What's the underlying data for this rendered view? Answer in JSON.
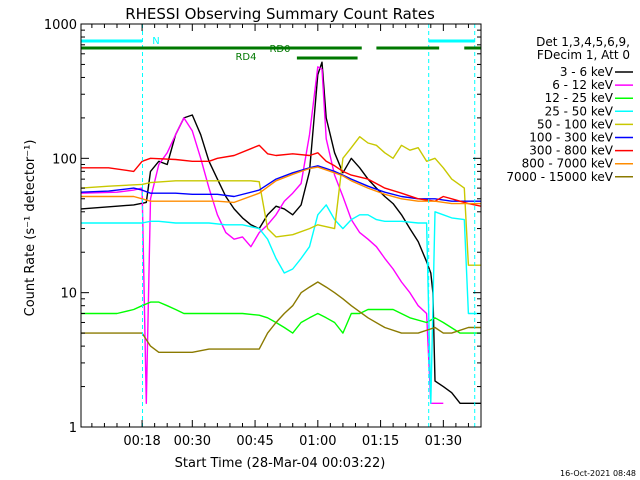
{
  "chart_data": {
    "type": "line",
    "title": "RHESSI Observing Summary Count Rates",
    "xlabel": "Start Time (28-Mar-04 00:03:22)",
    "ylabel": "Count Rate (s⁻¹ detector⁻¹)",
    "yscale": "log",
    "xlim": [
      3.4,
      99.0
    ],
    "ylim": [
      1,
      1000
    ],
    "x_ticks": [
      {
        "value": 18,
        "label": "00:18"
      },
      {
        "value": 30,
        "label": "00:30"
      },
      {
        "value": 45,
        "label": "00:45"
      },
      {
        "value": 60,
        "label": "01:00"
      },
      {
        "value": 75,
        "label": "01:15"
      },
      {
        "value": 90,
        "label": "01:30"
      }
    ],
    "y_ticks": [
      {
        "value": 1,
        "label": "1"
      },
      {
        "value": 10,
        "label": "10"
      },
      {
        "value": 100,
        "label": "100"
      },
      {
        "value": 1000,
        "label": "1000"
      }
    ],
    "legend_header": [
      "Det 1,3,4,5,6,9,",
      "FDecim 1, Att 0"
    ],
    "legend_position": "right",
    "series": [
      {
        "name": "3 - 6 keV",
        "color": "#000000",
        "x": [
          3.4,
          12,
          16,
          19,
          20,
          22,
          24,
          26,
          28,
          30,
          32,
          34,
          36,
          38,
          40,
          42,
          44,
          46,
          48,
          50,
          52,
          54,
          56,
          58,
          59,
          60,
          61,
          62,
          64,
          66,
          68,
          70,
          72,
          74,
          76,
          78,
          80,
          82,
          84,
          86,
          87,
          87.5,
          88,
          90,
          92,
          94,
          96,
          99
        ],
        "y": [
          42,
          44,
          45,
          47,
          80,
          95,
          90,
          150,
          200,
          210,
          150,
          95,
          70,
          52,
          42,
          36,
          32,
          30,
          38,
          44,
          42,
          38,
          45,
          80,
          180,
          420,
          520,
          200,
          110,
          78,
          100,
          85,
          70,
          60,
          52,
          46,
          38,
          30,
          24,
          17,
          14,
          10,
          2.2,
          2,
          1.8,
          1.5,
          1.5,
          1.5
        ]
      },
      {
        "name": "6 - 12 keV",
        "color": "#ff00ff",
        "x": [
          3.4,
          12,
          16,
          18,
          19,
          20,
          22,
          24,
          26,
          28,
          30,
          32,
          34,
          36,
          38,
          40,
          42,
          44,
          46,
          48,
          50,
          52,
          54,
          56,
          58,
          60,
          61,
          62,
          64,
          66,
          68,
          70,
          72,
          74,
          76,
          78,
          80,
          82,
          84,
          86,
          87,
          88,
          90
        ],
        "y": [
          55,
          56,
          58,
          60,
          1.5,
          50,
          90,
          110,
          150,
          200,
          160,
          100,
          60,
          38,
          28,
          25,
          26,
          22,
          28,
          32,
          38,
          48,
          55,
          65,
          150,
          480,
          460,
          140,
          75,
          52,
          35,
          28,
          25,
          22,
          18,
          15,
          12,
          10,
          8,
          7,
          1.5,
          1.5,
          1.5
        ]
      },
      {
        "name": "12 - 25 keV",
        "color": "#00ff00",
        "x": [
          3.4,
          12,
          16,
          18,
          20,
          22,
          24,
          26,
          28,
          30,
          34,
          38,
          42,
          46,
          48,
          50,
          52,
          54,
          56,
          58,
          60,
          62,
          64,
          66,
          68,
          70,
          72,
          74,
          78,
          82,
          86,
          88,
          90,
          94,
          99
        ],
        "y": [
          7,
          7,
          7.5,
          8,
          8.5,
          8.5,
          8,
          7.5,
          7,
          7,
          7,
          7,
          7,
          6.8,
          6.5,
          6,
          5.5,
          5,
          6,
          6.5,
          7,
          6.5,
          6,
          5,
          7,
          7,
          7.5,
          7.5,
          7.5,
          6.5,
          6,
          6.5,
          6,
          5,
          5
        ]
      },
      {
        "name": "25 - 50 keV",
        "color": "#00ffff",
        "x": [
          3.4,
          10,
          18,
          20,
          22,
          26,
          30,
          34,
          38,
          42,
          46,
          48,
          50,
          52,
          54,
          56,
          58,
          60,
          62,
          64,
          66,
          68,
          70,
          72,
          74,
          76,
          80,
          84,
          86,
          87,
          88,
          90,
          92,
          95,
          96,
          99
        ],
        "y": [
          33,
          33,
          33,
          34,
          34,
          33,
          33,
          33,
          32,
          32,
          30,
          25,
          18,
          14,
          15,
          18,
          22,
          38,
          45,
          35,
          30,
          35,
          38,
          38,
          35,
          34,
          34,
          33,
          33,
          1.5,
          40,
          38,
          36,
          35,
          7,
          7
        ]
      },
      {
        "name": "50 - 100 keV",
        "color": "#c8c800",
        "x": [
          3.4,
          10,
          18,
          20,
          26,
          30,
          36,
          40,
          44,
          46,
          48,
          50,
          54,
          58,
          60,
          62,
          64,
          66,
          68,
          70,
          72,
          74,
          76,
          78,
          80,
          82,
          84,
          86,
          88,
          90,
          92,
          95,
          96,
          99
        ],
        "y": [
          60,
          62,
          64,
          66,
          68,
          68,
          68,
          68,
          68,
          67,
          30,
          26,
          27,
          30,
          32,
          31,
          30,
          100,
          120,
          145,
          130,
          125,
          110,
          100,
          125,
          115,
          120,
          95,
          100,
          85,
          70,
          60,
          16,
          16
        ]
      },
      {
        "name": "100 - 300 keV",
        "color": "#0000ff",
        "x": [
          3.4,
          10,
          16,
          18,
          20,
          26,
          30,
          36,
          40,
          46,
          50,
          54,
          58,
          60,
          62,
          64,
          66,
          68,
          72,
          76,
          80,
          84,
          88,
          92,
          96,
          99
        ],
        "y": [
          56,
          57,
          60,
          58,
          55,
          55,
          54,
          54,
          52,
          58,
          70,
          78,
          85,
          88,
          84,
          80,
          75,
          70,
          62,
          56,
          52,
          50,
          50,
          48,
          48,
          48
        ]
      },
      {
        "name": "300 - 800 keV",
        "color": "#ff0000",
        "x": [
          3.4,
          10,
          16,
          18,
          20,
          26,
          30,
          34,
          36,
          40,
          44,
          46,
          48,
          50,
          54,
          58,
          60,
          62,
          64,
          66,
          68,
          72,
          76,
          80,
          84,
          88,
          90,
          92,
          96,
          99
        ],
        "y": [
          85,
          85,
          80,
          95,
          100,
          98,
          95,
          95,
          100,
          105,
          118,
          125,
          108,
          105,
          108,
          105,
          110,
          95,
          88,
          80,
          75,
          70,
          60,
          55,
          50,
          48,
          52,
          50,
          46,
          44
        ]
      },
      {
        "name": "800 - 7000 keV",
        "color": "#ff8c00",
        "x": [
          3.4,
          10,
          16,
          18,
          20,
          26,
          30,
          36,
          40,
          46,
          50,
          54,
          58,
          60,
          62,
          64,
          66,
          68,
          72,
          76,
          80,
          84,
          88,
          92,
          96,
          99
        ],
        "y": [
          52,
          52,
          52,
          50,
          48,
          48,
          48,
          48,
          47,
          55,
          68,
          76,
          84,
          86,
          82,
          78,
          74,
          68,
          60,
          54,
          50,
          48,
          48,
          46,
          46,
          46
        ]
      },
      {
        "name": "7000 - 15000 keV",
        "color": "#8b7a00",
        "x": [
          3.4,
          10,
          16,
          18,
          20,
          22,
          26,
          30,
          34,
          38,
          42,
          46,
          48,
          50,
          52,
          54,
          56,
          58,
          60,
          62,
          64,
          66,
          68,
          72,
          76,
          80,
          84,
          88,
          90,
          92,
          96,
          99
        ],
        "y": [
          5,
          5,
          5,
          5,
          4,
          3.6,
          3.6,
          3.6,
          3.8,
          3.8,
          3.8,
          3.8,
          5,
          6,
          7,
          8,
          10,
          11,
          12,
          11,
          10,
          9,
          8,
          6.5,
          5.5,
          5,
          5,
          5.5,
          5,
          5,
          5.5,
          5.5
        ]
      }
    ],
    "annotations": [
      {
        "label": "N",
        "color": "#00ffff",
        "bars": [
          [
            3.4,
            18.0
          ],
          [
            86.5,
            97.5
          ]
        ]
      },
      {
        "label": "RD0",
        "color": "#007800",
        "bars": [
          [
            3.4,
            70.5
          ],
          [
            74.0,
            89.0
          ],
          [
            95.0,
            99.0
          ]
        ]
      },
      {
        "label": "RD4",
        "color": "#007800",
        "bars": [
          [
            55.0,
            69.5
          ]
        ]
      }
    ],
    "vlines": [
      {
        "x": 18.1,
        "color": "#00ffff"
      },
      {
        "x": 86.5,
        "color": "#00ffff"
      },
      {
        "x": 97.5,
        "color": "#00ffff"
      }
    ]
  },
  "timestamp": "16-Oct-2021 08:48"
}
